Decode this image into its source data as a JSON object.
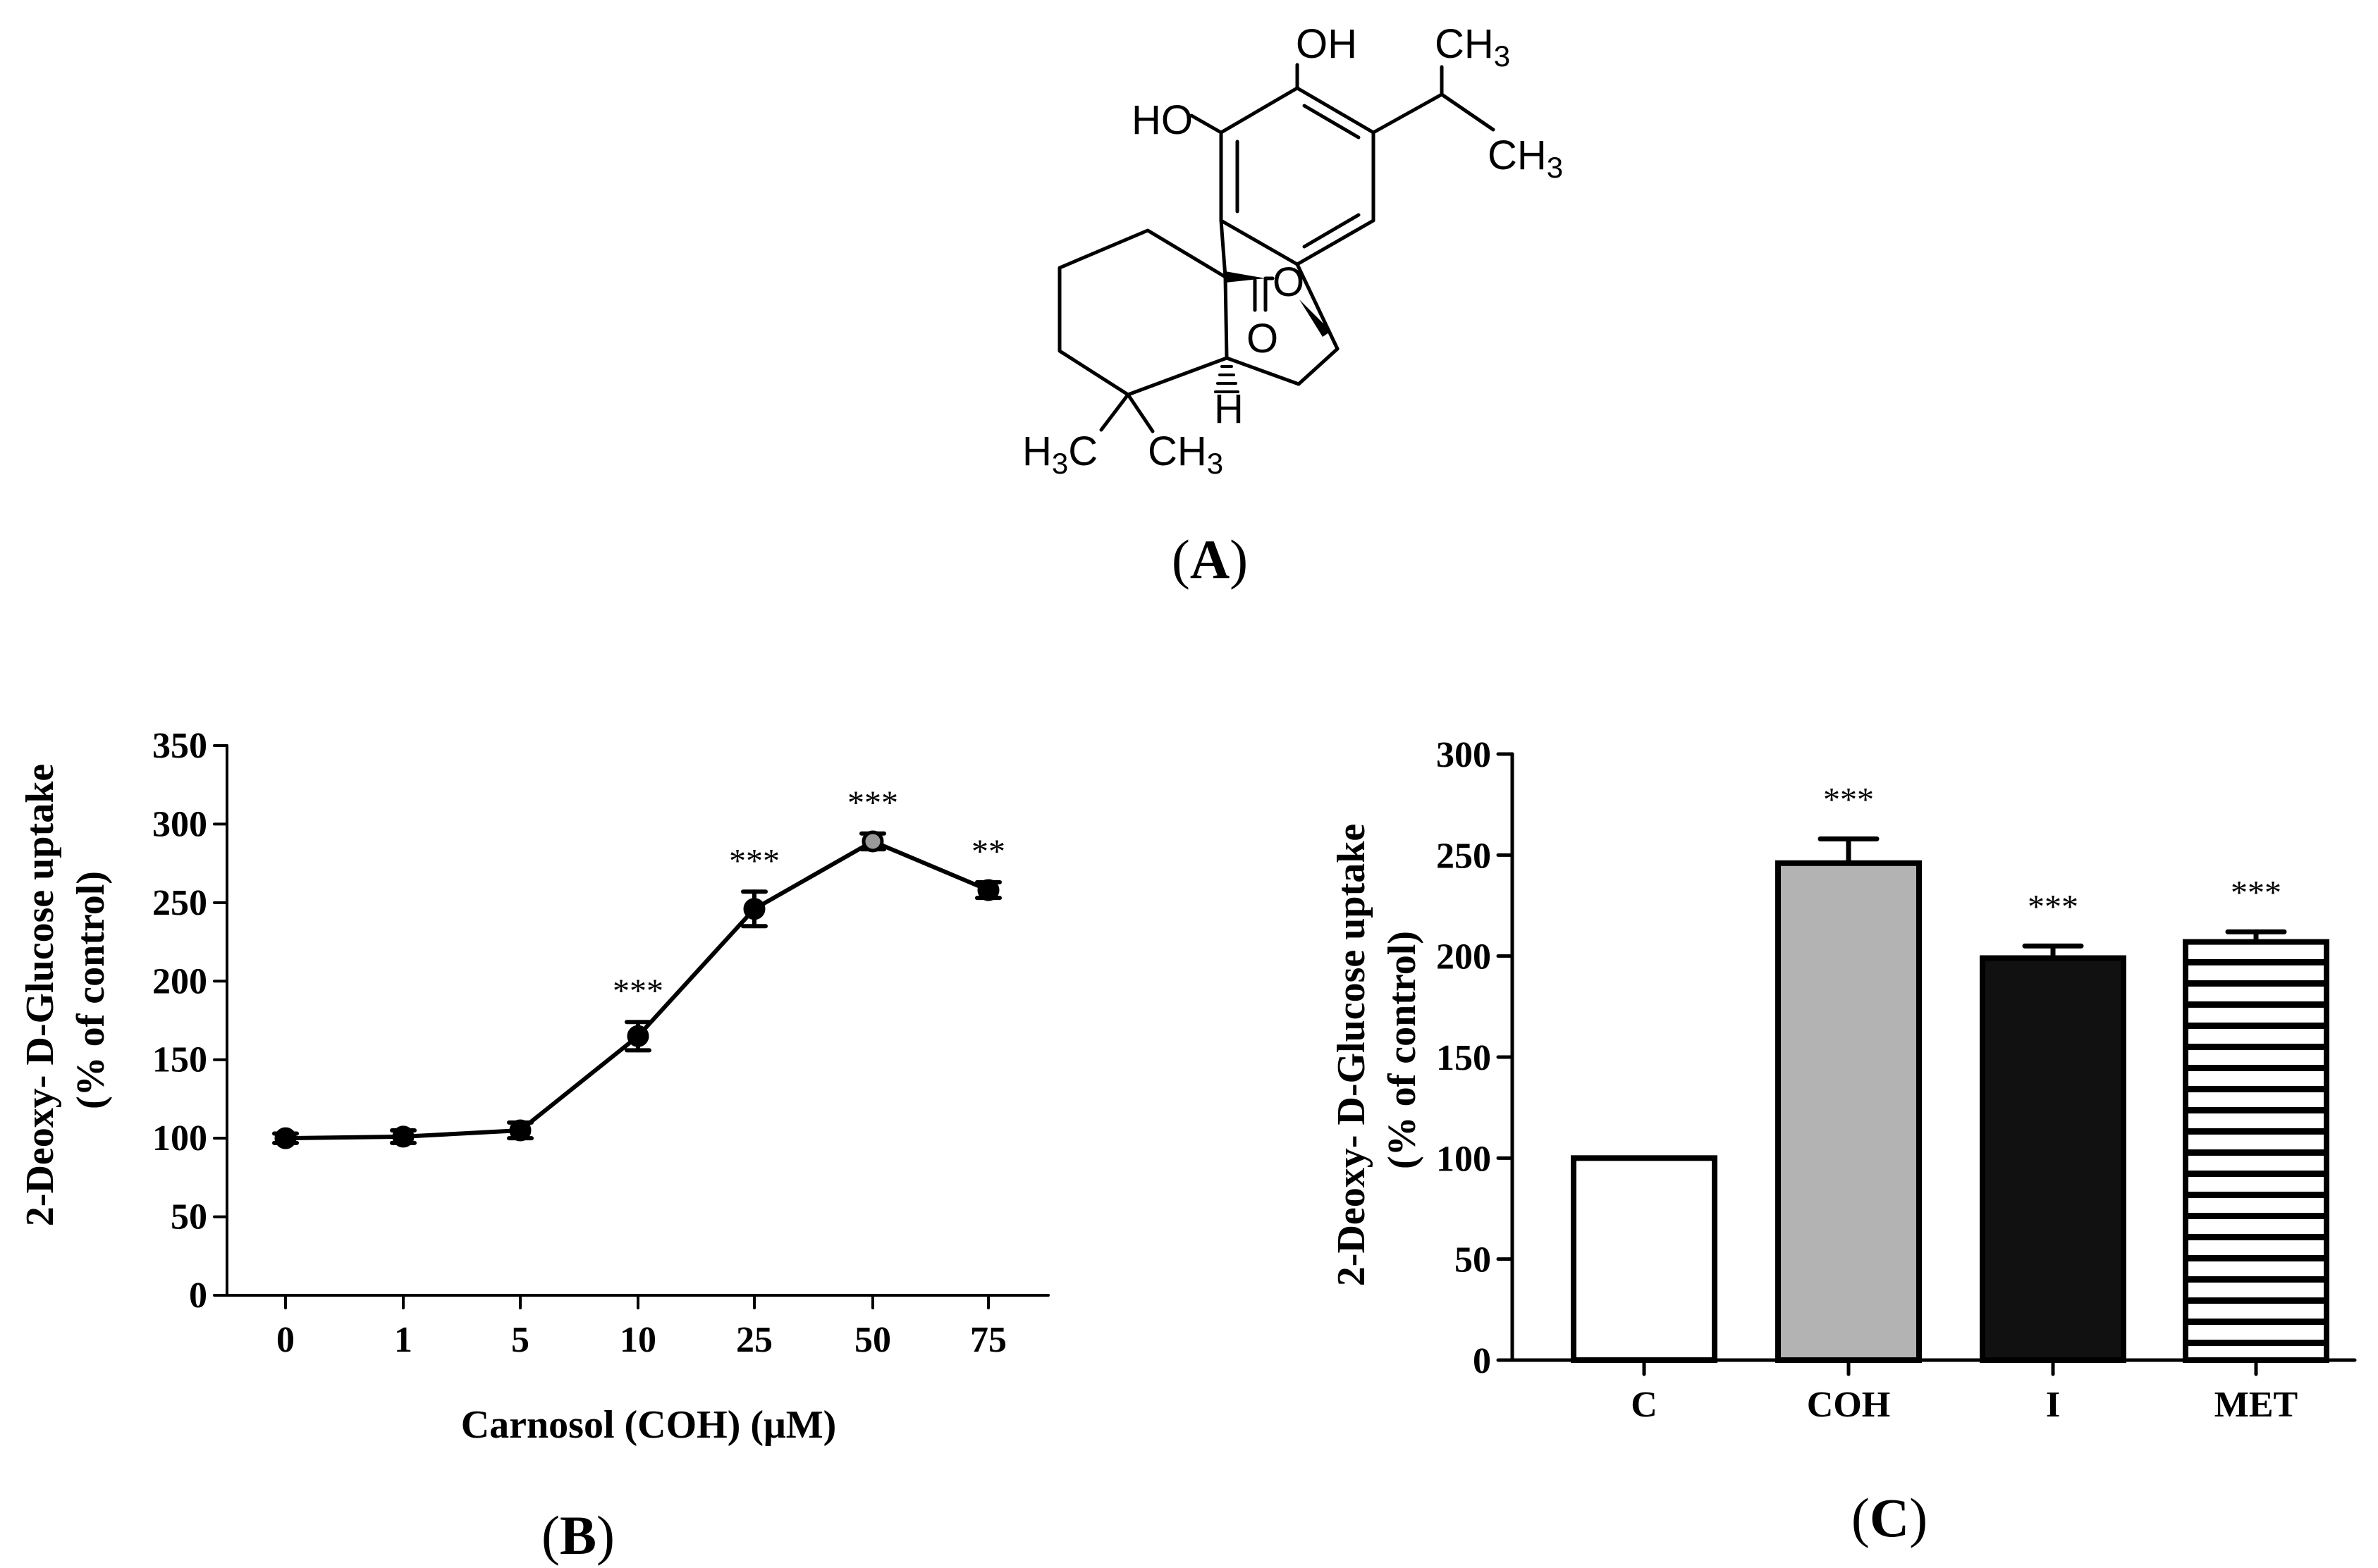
{
  "structure": {
    "atom_labels": [
      "OH",
      "HO",
      "CH3",
      "CH3",
      "O",
      "O",
      "H",
      "H3C",
      "CH3"
    ]
  },
  "panels": {
    "a": {
      "open": "(",
      "letter": "A",
      "close": ")"
    },
    "b": {
      "open": "(",
      "letter": "B",
      "close": ")"
    },
    "c": {
      "open": "(",
      "letter": "C",
      "close": ")"
    }
  },
  "chart_data": [
    {
      "type": "line",
      "panel": "B",
      "categories": [
        "0",
        "1",
        "5",
        "10",
        "25",
        "50",
        "75"
      ],
      "values": [
        100,
        101,
        105,
        165,
        246,
        289,
        258
      ],
      "errors": [
        3,
        4,
        5,
        9,
        11,
        5,
        5
      ],
      "significance": [
        "",
        "",
        "",
        "***",
        "***",
        "***",
        "**"
      ],
      "xlabel": "Carnosol (COH) (μM)",
      "ylabel": [
        "2-Deoxy- D-Glucose uptake",
        "(% of control)"
      ],
      "ylim": [
        0,
        350
      ],
      "yticks": [
        0,
        50,
        100,
        150,
        200,
        250,
        300,
        350
      ],
      "grid": false
    },
    {
      "type": "bar",
      "panel": "C",
      "categories": [
        "C",
        "COH",
        "I",
        "MET"
      ],
      "values": [
        100,
        246,
        199,
        207
      ],
      "errors": [
        0,
        12,
        6,
        5
      ],
      "significance": [
        "",
        "***",
        "***",
        "***"
      ],
      "bar_fills": [
        "white",
        "#b3b3b3",
        "#111111",
        "horizontal-stripes"
      ],
      "xlabel": "",
      "ylabel": [
        "2-Deoxy- D-Glucose uptake",
        "(% of control)"
      ],
      "ylim": [
        0,
        300
      ],
      "yticks": [
        0,
        50,
        100,
        150,
        200,
        250,
        300
      ],
      "grid": false
    }
  ]
}
